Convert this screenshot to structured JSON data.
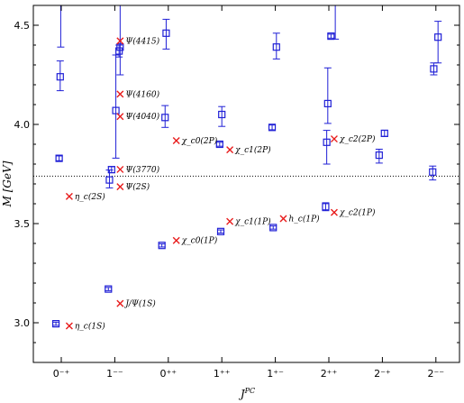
{
  "chart_data": {
    "type": "scatter",
    "xlabel": "J^{PC}",
    "ylabel": "M [GeV]",
    "ylim": [
      2.8,
      4.6
    ],
    "yticks": [
      3.0,
      3.5,
      4.0,
      4.5
    ],
    "ytick_labels": [
      "3.0",
      "3.5",
      "4.0",
      "4.5"
    ],
    "categories": [
      "0⁻⁺",
      "1⁻⁻",
      "0⁺⁺",
      "1⁺⁺",
      "1⁺⁻",
      "2⁺⁺",
      "2⁻⁺",
      "2⁻⁻"
    ],
    "threshold_line": {
      "y": 3.739,
      "style": "dotted"
    },
    "colors": {
      "lattice": "#1f1fd6",
      "experiment": "#e81c1c"
    },
    "series": [
      {
        "marker": "square-with-errorbar",
        "points": [
          {
            "x": -0.04,
            "y": 3.829,
            "err_lo": 0.012,
            "err_hi": 0.012
          },
          {
            "x": -0.02,
            "y": 4.24,
            "err_lo": 0.07,
            "err_hi": 0.08
          },
          {
            "x": -0.01,
            "y": 4.62,
            "err_lo": 0.23,
            "err_hi": 0.1
          },
          {
            "x": -0.1,
            "y": 2.995,
            "err_lo": 0.008,
            "err_hi": 0.008
          },
          {
            "x": -0.12,
            "y": 3.17,
            "err_lo": 0.008,
            "err_hi": 0.008
          },
          {
            "x": -0.1,
            "y": 3.72,
            "err_lo": 0.04,
            "err_hi": 0.05
          },
          {
            "x": -0.06,
            "y": 3.772,
            "err_lo": 0.015,
            "err_hi": 0.015
          },
          {
            "x": 0.02,
            "y": 4.07,
            "err_lo": 0.24,
            "err_hi": 0.28
          },
          {
            "x": 0.1,
            "y": 4.39,
            "err_lo": 0.14,
            "err_hi": 0.22
          },
          {
            "x": 0.08,
            "y": 4.37,
            "err_lo": 0.03,
            "err_hi": 0.03
          },
          {
            "x": -0.12,
            "y": 3.39,
            "err_lo": 0.008,
            "err_hi": 0.008
          },
          {
            "x": -0.06,
            "y": 4.035,
            "err_lo": 0.05,
            "err_hi": 0.06
          },
          {
            "x": -0.04,
            "y": 4.46,
            "err_lo": 0.08,
            "err_hi": 0.07
          },
          {
            "x": -0.02,
            "y": 3.46,
            "err_lo": 0.008,
            "err_hi": 0.008
          },
          {
            "x": -0.04,
            "y": 3.9,
            "err_lo": 0.01,
            "err_hi": 0.01
          },
          {
            "x": 0.0,
            "y": 4.05,
            "err_lo": 0.06,
            "err_hi": 0.04
          },
          {
            "x": -0.04,
            "y": 3.48,
            "err_lo": 0.008,
            "err_hi": 0.008
          },
          {
            "x": -0.06,
            "y": 3.985,
            "err_lo": 0.012,
            "err_hi": 0.012
          },
          {
            "x": 0.02,
            "y": 4.39,
            "err_lo": 0.06,
            "err_hi": 0.07
          },
          {
            "x": -0.06,
            "y": 3.585,
            "err_lo": 0.02,
            "err_hi": 0.02
          },
          {
            "x": -0.04,
            "y": 3.91,
            "err_lo": 0.11,
            "err_hi": 0.06
          },
          {
            "x": -0.02,
            "y": 4.105,
            "err_lo": 0.1,
            "err_hi": 0.18
          },
          {
            "x": 0.04,
            "y": 4.445,
            "err_lo": 0.01,
            "err_hi": 0.01
          },
          {
            "x": 0.12,
            "y": 4.64,
            "err_lo": 0.21,
            "err_hi": 0.1
          },
          {
            "x": -0.06,
            "y": 3.845,
            "err_lo": 0.04,
            "err_hi": 0.03
          },
          {
            "x": 0.04,
            "y": 3.955,
            "err_lo": 0.015,
            "err_hi": 0.015
          },
          {
            "x": -0.06,
            "y": 3.76,
            "err_lo": 0.04,
            "err_hi": 0.03
          },
          {
            "x": -0.04,
            "y": 4.28,
            "err_lo": 0.03,
            "err_hi": 0.03
          },
          {
            "x": 0.04,
            "y": 4.44,
            "err_lo": 0.13,
            "err_hi": 0.08
          }
        ]
      },
      {
        "marker": "x",
        "points": [
          {
            "x": 0.15,
            "y": 2.984,
            "label": "η_c(1S)"
          },
          {
            "x": 0.15,
            "y": 3.637,
            "label": "η_c(2S)"
          },
          {
            "x": 0.1,
            "y": 3.097,
            "label": "J/Ψ(1S)"
          },
          {
            "x": 0.1,
            "y": 3.686,
            "label": "Ψ(2S)"
          },
          {
            "x": 0.1,
            "y": 3.773,
            "label": "Ψ(3770)"
          },
          {
            "x": 0.1,
            "y": 4.04,
            "label": "Ψ(4040)"
          },
          {
            "x": 0.1,
            "y": 4.153,
            "label": "Ψ(4160)"
          },
          {
            "x": 0.1,
            "y": 4.421,
            "label": "Ψ(4415)"
          },
          {
            "x": 0.15,
            "y": 3.415,
            "label": "χ_c0(1P)"
          },
          {
            "x": 0.15,
            "y": 3.918,
            "label": "χ_c0(2P)"
          },
          {
            "x": 0.15,
            "y": 3.511,
            "label": "χ_c1(1P)"
          },
          {
            "x": 0.15,
            "y": 3.872,
            "label": "χ_c1(2P)"
          },
          {
            "x": 0.15,
            "y": 3.525,
            "label": "h_c(1P)"
          },
          {
            "x": 0.1,
            "y": 3.556,
            "label": "χ_c2(1P)"
          },
          {
            "x": 0.1,
            "y": 3.927,
            "label": "χ_c2(2P)"
          }
        ]
      }
    ]
  }
}
